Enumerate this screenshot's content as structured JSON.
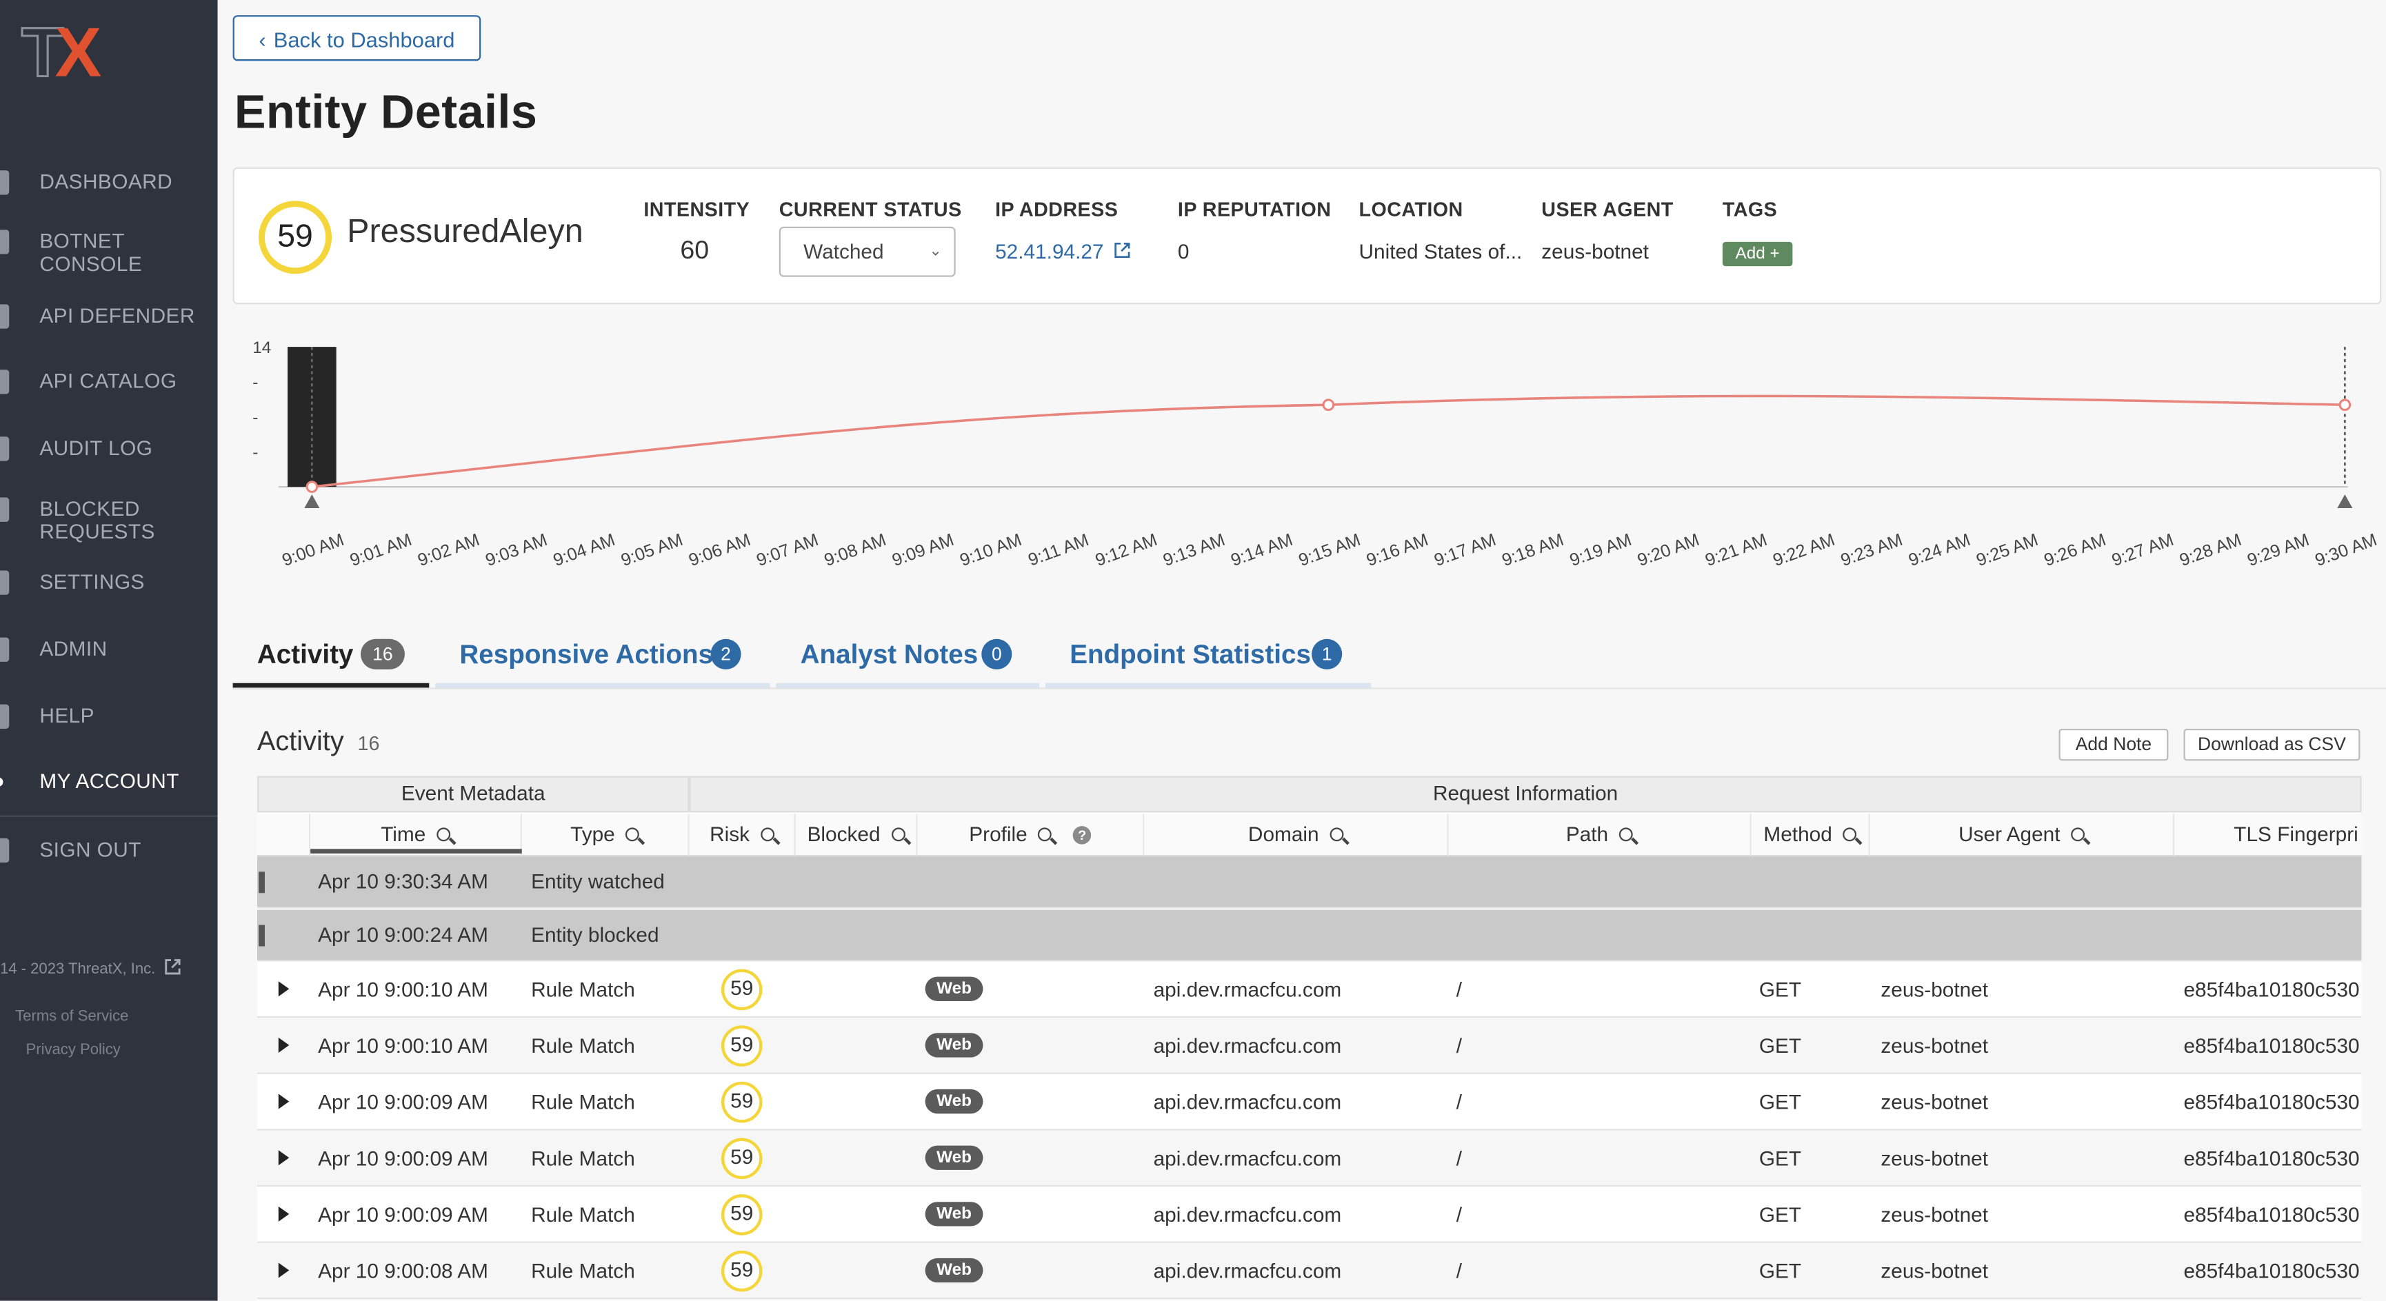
{
  "brand": {
    "logo_t": "T",
    "logo_x": "X",
    "accent_color": "#e0512f"
  },
  "sidebar": {
    "items": [
      {
        "label": "DASHBOARD"
      },
      {
        "label": "BOTNET CONSOLE"
      },
      {
        "label": "API DEFENDER"
      },
      {
        "label": "API CATALOG"
      },
      {
        "label": "AUDIT LOG"
      },
      {
        "label": "BLOCKED REQUESTS"
      },
      {
        "label": "SETTINGS"
      },
      {
        "label": "ADMIN"
      },
      {
        "label": "HELP"
      },
      {
        "label": "MY ACCOUNT"
      },
      {
        "label": "SIGN OUT"
      }
    ],
    "copyright": "14 - 2023 ThreatX, Inc.",
    "terms": "Terms of Service",
    "privacy": "Privacy Policy"
  },
  "header": {
    "back_label": "Back to Dashboard",
    "title": "Entity Details"
  },
  "entity": {
    "risk": "59",
    "name": "PressuredAleyn",
    "intensity_label": "INTENSITY",
    "intensity": "60",
    "status_label": "CURRENT STATUS",
    "status": "Watched",
    "ip_label": "IP ADDRESS",
    "ip": "52.41.94.27",
    "reputation_label": "IP REPUTATION",
    "reputation": "0",
    "location_label": "LOCATION",
    "location": "United States of...",
    "ua_label": "USER AGENT",
    "user_agent": "zeus-botnet",
    "tags_label": "TAGS",
    "tag_add": "Add +"
  },
  "chart_data": {
    "type": "line",
    "x": [
      "9:00 AM",
      "9:01 AM",
      "9:02 AM",
      "9:03 AM",
      "9:04 AM",
      "9:05 AM",
      "9:06 AM",
      "9:07 AM",
      "9:08 AM",
      "9:09 AM",
      "9:10 AM",
      "9:11 AM",
      "9:12 AM",
      "9:13 AM",
      "9:14 AM",
      "9:15 AM",
      "9:16 AM",
      "9:17 AM",
      "9:18 AM",
      "9:19 AM",
      "9:20 AM",
      "9:21 AM",
      "9:22 AM",
      "9:23 AM",
      "9:24 AM",
      "9:25 AM",
      "9:26 AM",
      "9:27 AM",
      "9:28 AM",
      "9:29 AM",
      "9:30 AM"
    ],
    "bar": {
      "x": "9:00 AM",
      "value": 14
    },
    "line_points": [
      {
        "x": 0,
        "y": 0
      },
      {
        "x": 15,
        "y": 8.2
      },
      {
        "x": 30,
        "y": 8.2
      }
    ],
    "line_color": "#e8847c",
    "y_ticks": [
      "14",
      "-",
      "-",
      "-"
    ],
    "ylim": [
      0,
      14
    ]
  },
  "tabs": [
    {
      "label": "Activity",
      "count": "16"
    },
    {
      "label": "Responsive Actions",
      "count": "2"
    },
    {
      "label": "Analyst Notes",
      "count": "0"
    },
    {
      "label": "Endpoint Statistics",
      "count": "1"
    }
  ],
  "activity": {
    "title": "Activity",
    "count": "16",
    "add_note": "Add Note",
    "download_csv": "Download as CSV",
    "group_event": "Event Metadata",
    "group_request": "Request Information",
    "columns": [
      "Time",
      "Type",
      "Risk",
      "Blocked",
      "Profile",
      "Domain",
      "Path",
      "Method",
      "User Agent",
      "TLS Fingerpri"
    ],
    "events": [
      {
        "time": "Apr 10 9:30:34 AM",
        "type": "Entity watched"
      },
      {
        "time": "Apr 10 9:00:24 AM",
        "type": "Entity blocked"
      }
    ],
    "rows": [
      {
        "time": "Apr 10 9:00:10 AM",
        "type": "Rule Match",
        "risk": "59",
        "profile": "Web",
        "domain": "api.dev.rmacfcu.com",
        "path": "/",
        "method": "GET",
        "ua": "zeus-botnet",
        "tls": "e85f4ba10180c530"
      },
      {
        "time": "Apr 10 9:00:10 AM",
        "type": "Rule Match",
        "risk": "59",
        "profile": "Web",
        "domain": "api.dev.rmacfcu.com",
        "path": "/",
        "method": "GET",
        "ua": "zeus-botnet",
        "tls": "e85f4ba10180c530"
      },
      {
        "time": "Apr 10 9:00:09 AM",
        "type": "Rule Match",
        "risk": "59",
        "profile": "Web",
        "domain": "api.dev.rmacfcu.com",
        "path": "/",
        "method": "GET",
        "ua": "zeus-botnet",
        "tls": "e85f4ba10180c530"
      },
      {
        "time": "Apr 10 9:00:09 AM",
        "type": "Rule Match",
        "risk": "59",
        "profile": "Web",
        "domain": "api.dev.rmacfcu.com",
        "path": "/",
        "method": "GET",
        "ua": "zeus-botnet",
        "tls": "e85f4ba10180c530"
      },
      {
        "time": "Apr 10 9:00:09 AM",
        "type": "Rule Match",
        "risk": "59",
        "profile": "Web",
        "domain": "api.dev.rmacfcu.com",
        "path": "/",
        "method": "GET",
        "ua": "zeus-botnet",
        "tls": "e85f4ba10180c530"
      },
      {
        "time": "Apr 10 9:00:08 AM",
        "type": "Rule Match",
        "risk": "59",
        "profile": "Web",
        "domain": "api.dev.rmacfcu.com",
        "path": "/",
        "method": "GET",
        "ua": "zeus-botnet",
        "tls": "e85f4ba10180c530"
      }
    ]
  }
}
